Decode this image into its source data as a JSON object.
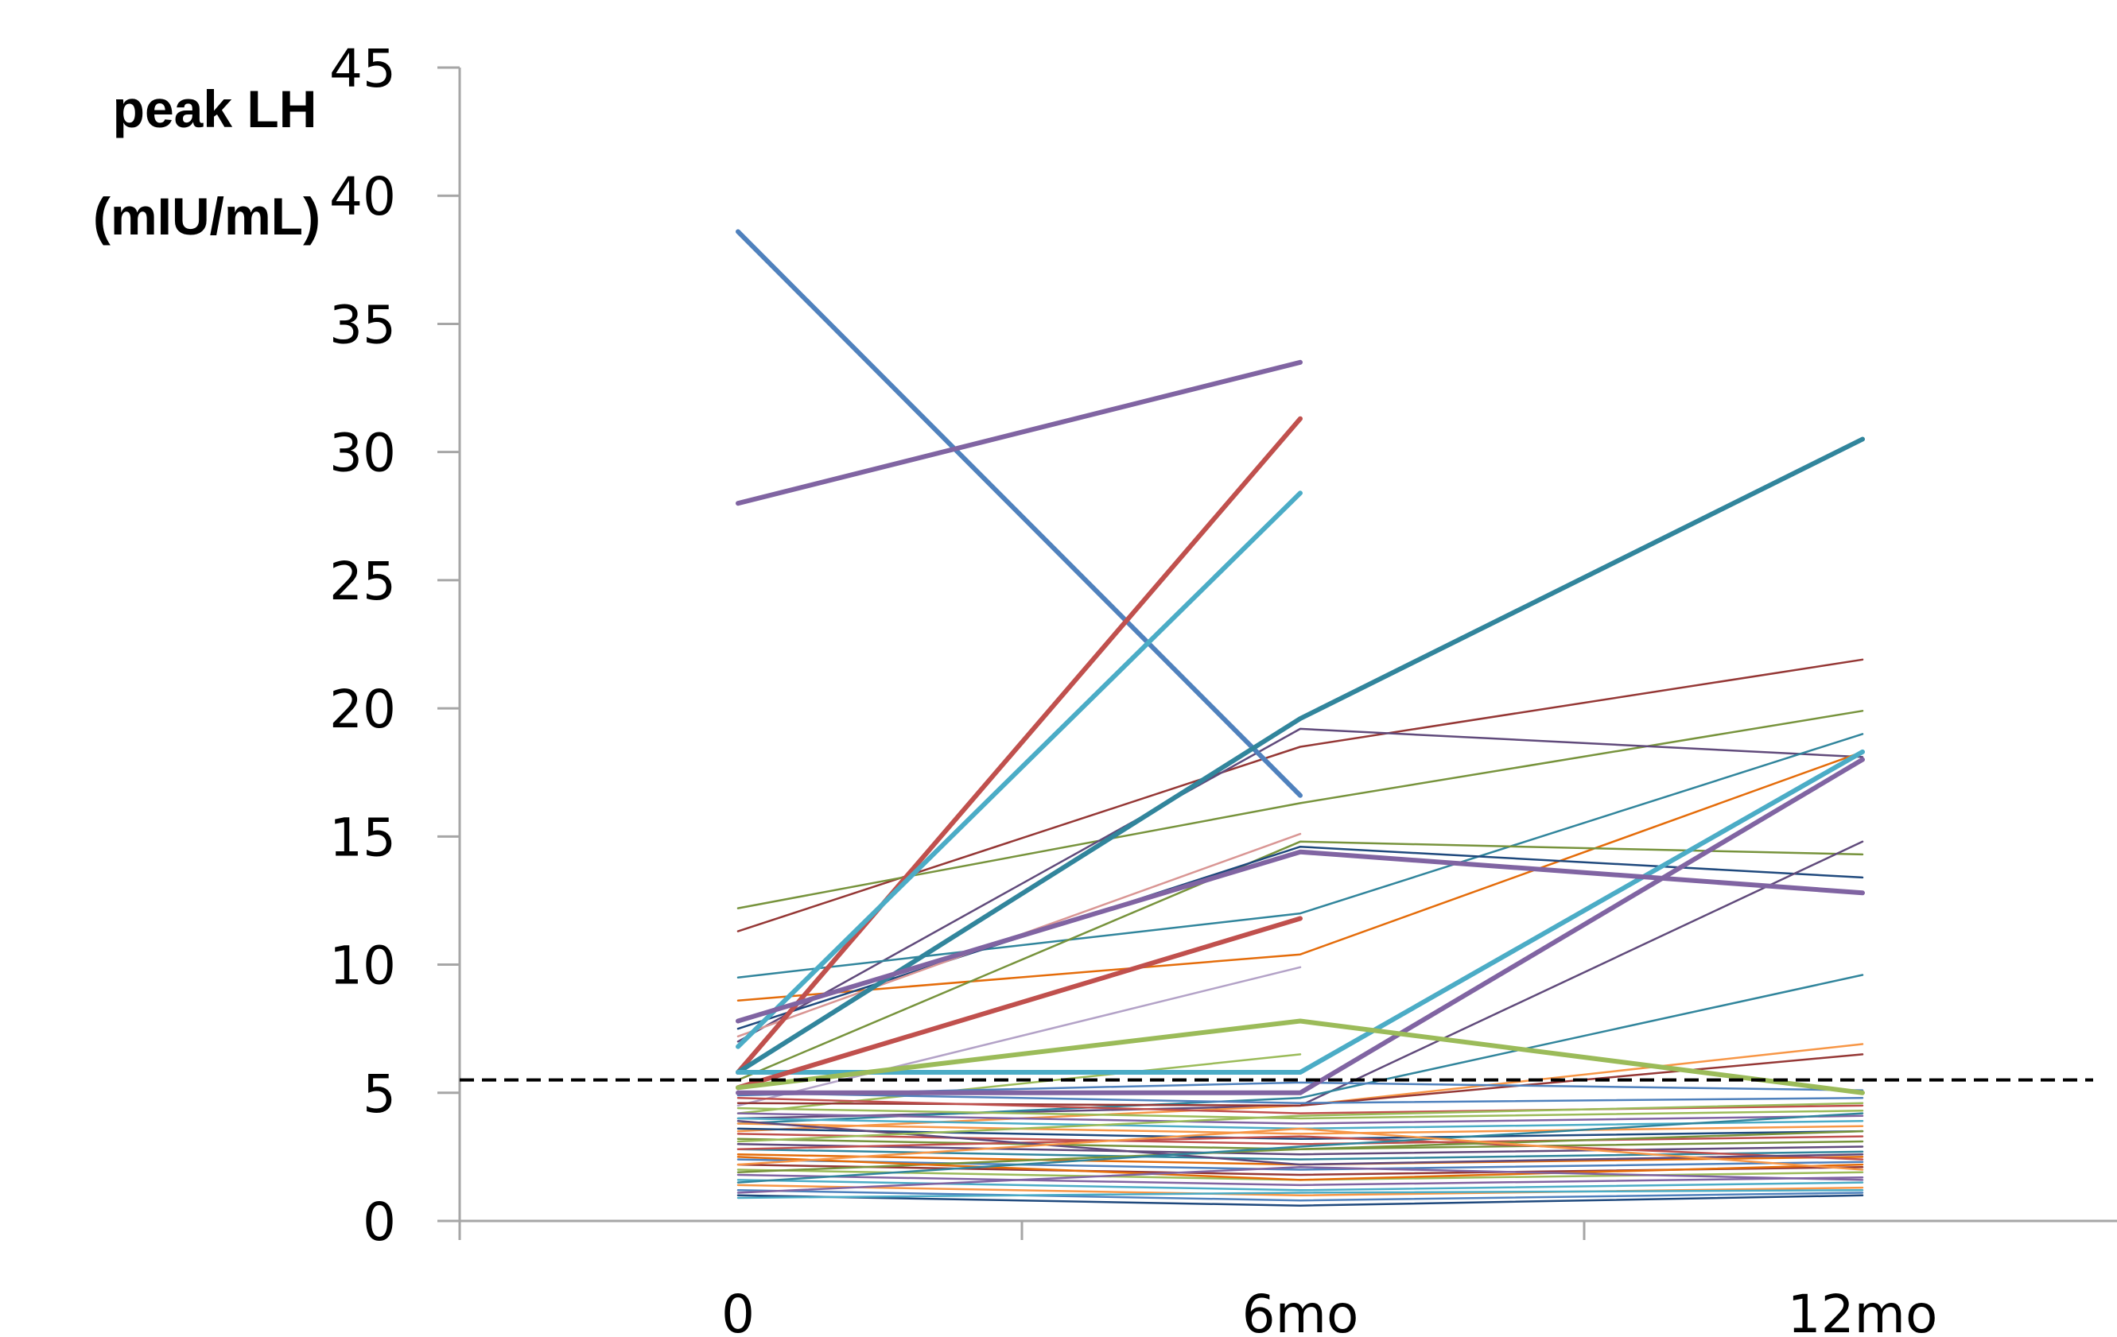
{
  "chart_data": {
    "type": "line",
    "ylabel": [
      "peak LH",
      "(mIU/mL)"
    ],
    "categories": [
      "0",
      "6mo",
      "12mo"
    ],
    "ylim": [
      0,
      45
    ],
    "yticks": [
      0,
      5,
      10,
      15,
      20,
      25,
      30,
      35,
      40,
      45
    ],
    "grid": false,
    "legend": "none",
    "reference_line": {
      "y": 5.5,
      "style": "dashed",
      "color": "#000000"
    },
    "series": [
      {
        "values": [
          38.6,
          16.6,
          null
        ],
        "color": "#4f81bd",
        "bold": true
      },
      {
        "values": [
          28.0,
          33.5,
          null
        ],
        "color": "#8064a2",
        "bold": true
      },
      {
        "values": [
          5.8,
          31.3,
          null
        ],
        "color": "#c0504d",
        "bold": true
      },
      {
        "values": [
          6.8,
          28.4,
          null
        ],
        "color": "#4bacc6",
        "bold": true
      },
      {
        "values": [
          5.8,
          19.6,
          30.5
        ],
        "color": "#31859c",
        "bold": true
      },
      {
        "values": [
          11.3,
          18.5,
          21.9
        ],
        "color": "#953735"
      },
      {
        "values": [
          12.2,
          16.3,
          19.9
        ],
        "color": "#77933c"
      },
      {
        "values": [
          7.0,
          19.2,
          18.1
        ],
        "color": "#604a7b"
      },
      {
        "values": [
          9.5,
          12.0,
          19.0
        ],
        "color": "#31859c"
      },
      {
        "values": [
          8.6,
          10.4,
          18.3
        ],
        "color": "#e46c0a"
      },
      {
        "values": [
          5.8,
          5.8,
          18.3
        ],
        "color": "#4bacc6",
        "bold": true
      },
      {
        "values": [
          5.0,
          5.0,
          18.0
        ],
        "color": "#8064a2",
        "bold": true
      },
      {
        "values": [
          5.5,
          14.8,
          14.3
        ],
        "color": "#77933c"
      },
      {
        "values": [
          7.5,
          14.6,
          13.4
        ],
        "color": "#1f497d"
      },
      {
        "values": [
          7.8,
          14.4,
          12.8
        ],
        "color": "#8064a2",
        "bold": true
      },
      {
        "values": [
          7.2,
          15.1,
          null
        ],
        "color": "#d99694"
      },
      {
        "values": [
          5.2,
          11.8,
          null
        ],
        "color": "#c0504d",
        "bold": true
      },
      {
        "values": [
          4.5,
          9.9,
          null
        ],
        "color": "#b3a2c7"
      },
      {
        "values": [
          4.0,
          4.5,
          14.8
        ],
        "color": "#604a7b"
      },
      {
        "values": [
          3.8,
          4.8,
          9.6
        ],
        "color": "#31859c"
      },
      {
        "values": [
          5.2,
          7.8,
          5.0
        ],
        "color": "#9bbb59",
        "bold": true
      },
      {
        "values": [
          4.2,
          6.5,
          null
        ],
        "color": "#9bbb59"
      },
      {
        "values": [
          3.5,
          4.5,
          6.9
        ],
        "color": "#f79646"
      },
      {
        "values": [
          4.6,
          4.5,
          6.5
        ],
        "color": "#953735"
      },
      {
        "values": [
          5.0,
          4.6,
          4.8
        ],
        "color": "#4f81bd"
      },
      {
        "values": [
          4.8,
          4.2,
          4.5
        ],
        "color": "#c0504d"
      },
      {
        "values": [
          4.4,
          4.0,
          4.3
        ],
        "color": "#9bbb59"
      },
      {
        "values": [
          4.2,
          3.8,
          4.1
        ],
        "color": "#8064a2"
      },
      {
        "values": [
          4.0,
          3.6,
          3.9
        ],
        "color": "#4bacc6"
      },
      {
        "values": [
          3.8,
          3.4,
          3.7
        ],
        "color": "#f79646"
      },
      {
        "values": [
          3.6,
          3.2,
          3.5
        ],
        "color": "#1f497d"
      },
      {
        "values": [
          3.4,
          3.0,
          3.3
        ],
        "color": "#c0504d"
      },
      {
        "values": [
          3.2,
          2.8,
          3.1
        ],
        "color": "#77933c"
      },
      {
        "values": [
          3.0,
          2.6,
          2.9
        ],
        "color": "#604a7b"
      },
      {
        "values": [
          2.8,
          2.4,
          2.7
        ],
        "color": "#31859c"
      },
      {
        "values": [
          2.6,
          2.2,
          2.5
        ],
        "color": "#e46c0a"
      },
      {
        "values": [
          2.4,
          2.0,
          2.3
        ],
        "color": "#4f81bd"
      },
      {
        "values": [
          2.2,
          1.8,
          2.1
        ],
        "color": "#953735"
      },
      {
        "values": [
          2.0,
          1.6,
          1.9
        ],
        "color": "#9bbb59"
      },
      {
        "values": [
          1.8,
          1.4,
          1.7
        ],
        "color": "#8064a2"
      },
      {
        "values": [
          1.6,
          1.2,
          1.5
        ],
        "color": "#4bacc6"
      },
      {
        "values": [
          1.4,
          1.0,
          1.3
        ],
        "color": "#f79646"
      },
      {
        "values": [
          1.2,
          0.8,
          1.1
        ],
        "color": "#4f81bd"
      },
      {
        "values": [
          1.0,
          0.6,
          1.0
        ],
        "color": "#1f497d"
      },
      {
        "values": [
          0.9,
          1.1,
          1.2
        ],
        "color": "#4bacc6"
      },
      {
        "values": [
          2.8,
          3.3,
          2.4
        ],
        "color": "#c0504d"
      },
      {
        "values": [
          1.9,
          2.8,
          3.5
        ],
        "color": "#77933c"
      },
      {
        "values": [
          2.5,
          1.6,
          2.2
        ],
        "color": "#e46c0a"
      },
      {
        "values": [
          3.9,
          2.2,
          2.6
        ],
        "color": "#604a7b"
      },
      {
        "values": [
          1.5,
          2.9,
          4.2
        ],
        "color": "#31859c"
      },
      {
        "values": [
          4.9,
          5.4,
          5.1
        ],
        "color": "#4f81bd"
      },
      {
        "values": [
          3.1,
          4.1,
          4.6
        ],
        "color": "#9bbb59"
      },
      {
        "values": [
          2.2,
          3.6,
          2.0
        ],
        "color": "#f79646"
      },
      {
        "values": [
          1.1,
          2.1,
          1.6
        ],
        "color": "#8064a2"
      }
    ]
  }
}
